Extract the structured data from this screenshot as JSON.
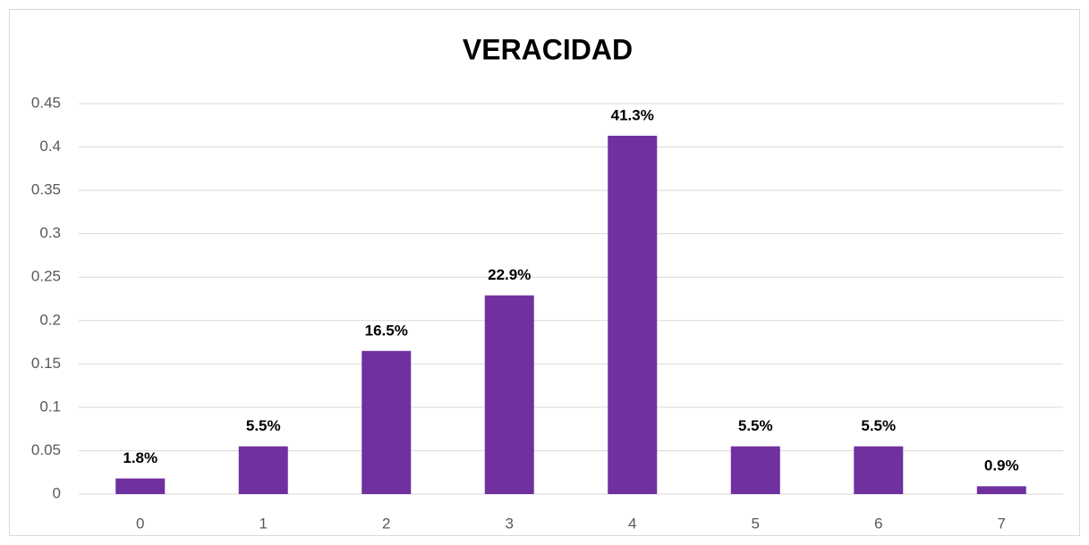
{
  "chart_data": {
    "type": "bar",
    "title": "VERACIDAD",
    "categories": [
      "0",
      "1",
      "2",
      "3",
      "4",
      "5",
      "6",
      "7"
    ],
    "values": [
      0.018,
      0.055,
      0.165,
      0.229,
      0.413,
      0.055,
      0.055,
      0.009
    ],
    "value_labels": [
      "1.8%",
      "5.5%",
      "16.5%",
      "22.9%",
      "41.3%",
      "5.5%",
      "5.5%",
      "0.9%"
    ],
    "color": "#7030a0",
    "ylim": [
      0,
      0.45
    ],
    "yticks": [
      0,
      0.05,
      0.1,
      0.15,
      0.2,
      0.25,
      0.3,
      0.35,
      0.4,
      0.45
    ],
    "grid": true
  }
}
